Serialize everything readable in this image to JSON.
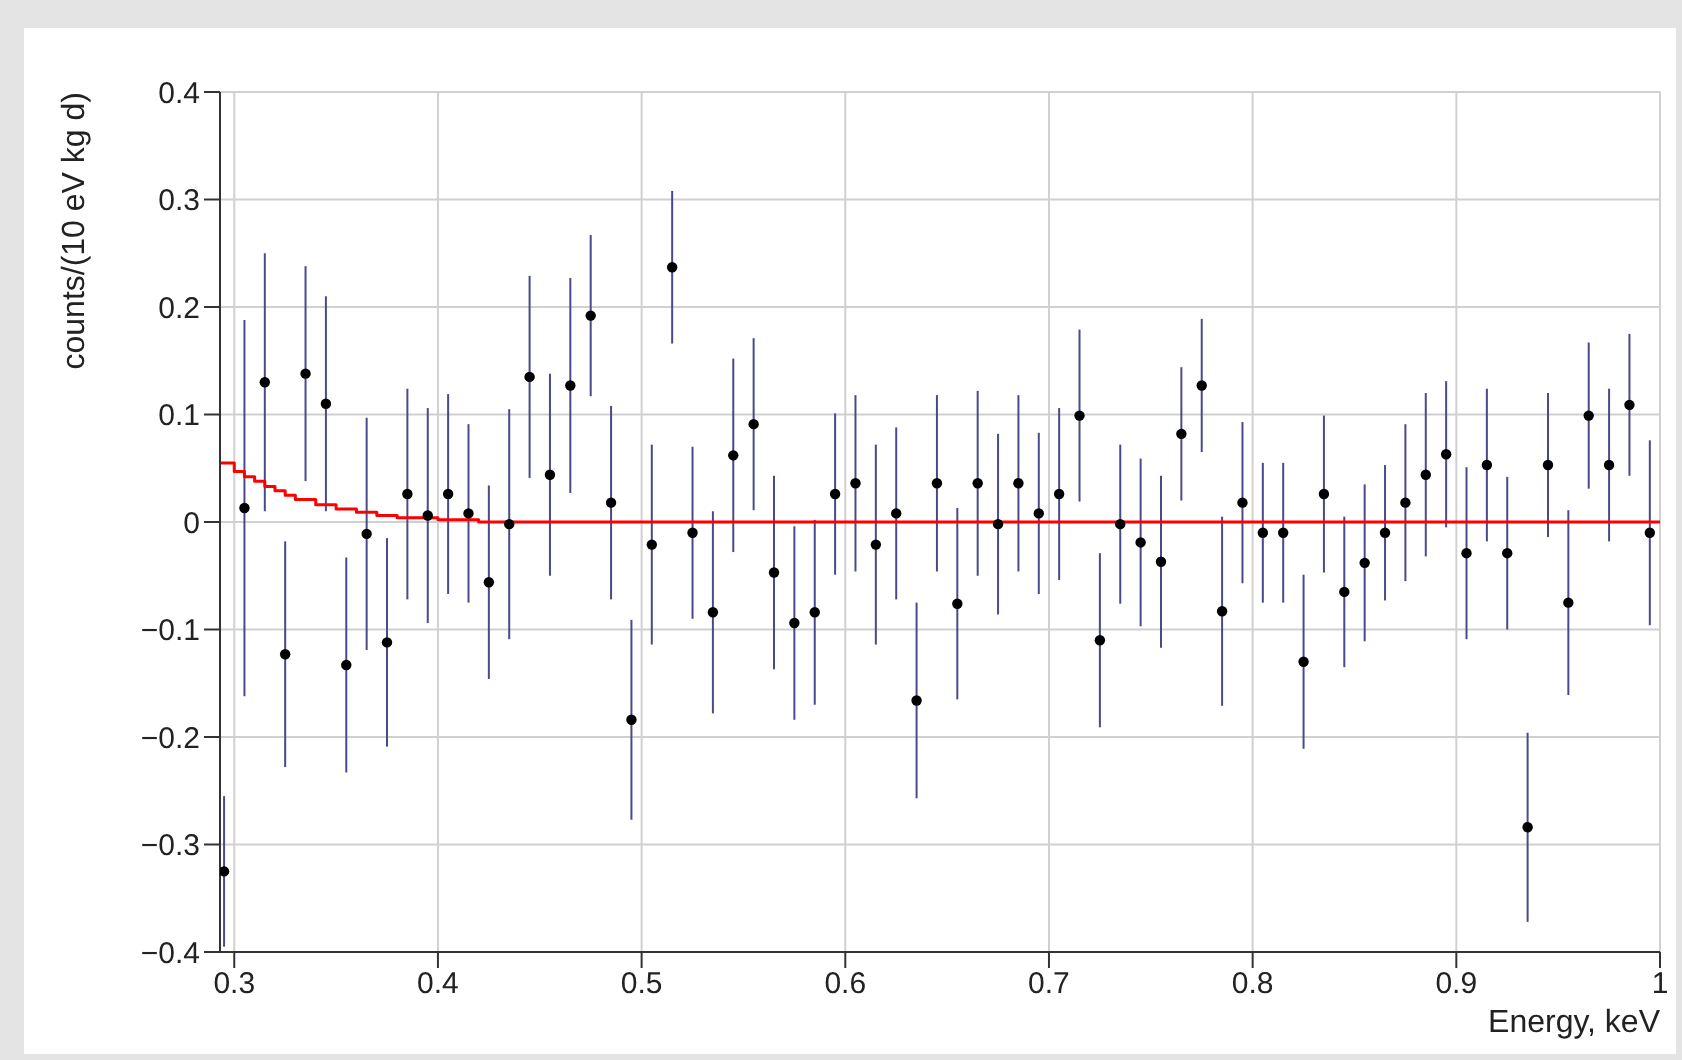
{
  "chart_data": {
    "type": "scatter",
    "xlabel": "Energy, keV",
    "ylabel": "counts/(10 eV kg d)",
    "x": [
      0.295,
      0.305,
      0.315,
      0.325,
      0.335,
      0.345,
      0.355,
      0.365,
      0.375,
      0.385,
      0.395,
      0.405,
      0.415,
      0.425,
      0.435,
      0.445,
      0.455,
      0.465,
      0.475,
      0.485,
      0.495,
      0.505,
      0.515,
      0.525,
      0.535,
      0.545,
      0.555,
      0.565,
      0.575,
      0.585,
      0.595,
      0.605,
      0.615,
      0.625,
      0.635,
      0.645,
      0.655,
      0.665,
      0.675,
      0.685,
      0.695,
      0.705,
      0.715,
      0.725,
      0.735,
      0.745,
      0.755,
      0.765,
      0.775,
      0.785,
      0.795,
      0.805,
      0.815,
      0.825,
      0.835,
      0.845,
      0.855,
      0.865,
      0.875,
      0.885,
      0.895,
      0.905,
      0.915,
      0.925,
      0.935,
      0.945,
      0.955,
      0.965,
      0.975,
      0.985,
      0.995
    ],
    "series": [
      {
        "color": "#000000",
        "marker": "circle",
        "values": [
          -0.325,
          0.013,
          0.13,
          -0.123,
          0.138,
          0.11,
          -0.133,
          -0.011,
          -0.112,
          0.026,
          0.006,
          0.026,
          0.008,
          -0.056,
          -0.002,
          0.135,
          0.044,
          0.127,
          0.192,
          0.018,
          -0.184,
          -0.021,
          0.237,
          -0.01,
          -0.084,
          0.062,
          0.091,
          -0.047,
          -0.094,
          -0.084,
          0.026,
          0.036,
          -0.021,
          0.008,
          -0.166,
          0.036,
          -0.076,
          0.036,
          -0.002,
          0.036,
          0.008,
          0.026,
          0.099,
          -0.11,
          -0.002,
          -0.019,
          -0.037,
          0.082,
          0.127,
          -0.083,
          0.018,
          -0.01,
          -0.01,
          -0.13,
          0.026,
          -0.065,
          -0.038,
          -0.01,
          0.018,
          0.044,
          0.063,
          -0.029,
          0.053,
          -0.029,
          -0.284,
          0.053,
          -0.075,
          0.099,
          0.053,
          0.109,
          -0.01
        ],
        "errors": [
          0.07,
          0.175,
          0.12,
          0.105,
          0.1,
          0.1,
          0.1,
          0.108,
          0.097,
          0.098,
          0.1,
          0.093,
          0.083,
          0.09,
          0.107,
          0.094,
          0.094,
          0.1,
          0.075,
          0.09,
          0.093,
          0.093,
          0.071,
          0.08,
          0.094,
          0.09,
          0.08,
          0.09,
          0.09,
          0.086,
          0.075,
          0.082,
          0.093,
          0.08,
          0.091,
          0.082,
          0.089,
          0.086,
          0.084,
          0.082,
          0.075,
          0.08,
          0.08,
          0.081,
          0.074,
          0.078,
          0.08,
          0.062,
          0.062,
          0.088,
          0.075,
          0.065,
          0.065,
          0.081,
          0.073,
          0.07,
          0.073,
          0.063,
          0.073,
          0.076,
          0.068,
          0.08,
          0.071,
          0.071,
          0.088,
          0.067,
          0.086,
          0.068,
          0.071,
          0.066,
          0.086
        ]
      },
      {
        "type": "step",
        "color": "#ff0000",
        "x": [
          0.293,
          0.3,
          0.305,
          0.31,
          0.315,
          0.32,
          0.325,
          0.33,
          0.34,
          0.35,
          0.36,
          0.37,
          0.38,
          0.4,
          0.42,
          1.0
        ],
        "values": [
          0.055,
          0.047,
          0.042,
          0.038,
          0.033,
          0.029,
          0.025,
          0.021,
          0.016,
          0.012,
          0.009,
          0.006,
          0.004,
          0.002,
          0,
          0
        ]
      }
    ],
    "grid": true,
    "legend": false,
    "xlim": [
      0.293,
      1
    ],
    "xticks": [
      0.3,
      0.4,
      0.5,
      0.6,
      0.7,
      0.8,
      0.9,
      1
    ],
    "ylim": [
      -0.4,
      0.4
    ],
    "yticks": [
      {
        "value": -0.4,
        "label": "−0.4"
      },
      {
        "value": -0.3,
        "label": "−0.3"
      },
      {
        "value": -0.2,
        "label": "−0.2"
      },
      {
        "value": -0.1,
        "label": "−0.1"
      },
      0,
      0.1,
      0.2,
      0.3,
      0.4
    ]
  }
}
